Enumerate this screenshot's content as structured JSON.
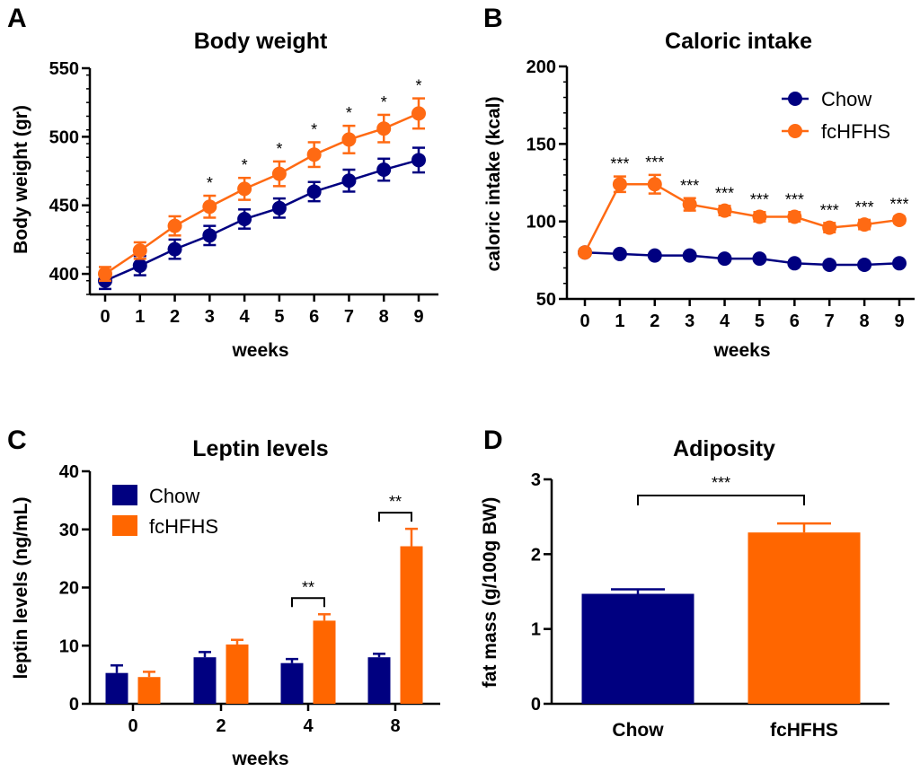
{
  "colors": {
    "chow": "#000080",
    "fchfhs": "#FF6A13",
    "axis": "#000000"
  },
  "chart_data": [
    {
      "panel": "A",
      "type": "line",
      "title": "Body weight",
      "xlabel": "weeks",
      "ylabel": "Body weight (gr)",
      "x": [
        0,
        1,
        2,
        3,
        4,
        5,
        6,
        7,
        8,
        9
      ],
      "ylim": [
        385,
        550
      ],
      "yticks": [
        400,
        450,
        500,
        550
      ],
      "series": [
        {
          "key": "chow",
          "values": [
            395,
            406,
            418,
            428,
            440,
            448,
            460,
            468,
            476,
            483
          ],
          "error": [
            6,
            7,
            7,
            7,
            7,
            7,
            7,
            8,
            8,
            9
          ]
        },
        {
          "key": "fchfhs",
          "values": [
            400,
            417,
            435,
            449,
            462,
            473,
            487,
            498,
            506,
            517
          ],
          "error": [
            5,
            6,
            7,
            8,
            8,
            9,
            9,
            10,
            10,
            11
          ]
        }
      ],
      "annotations": {
        "marker": "*",
        "x": [
          3,
          4,
          5,
          6,
          7,
          8,
          9
        ]
      }
    },
    {
      "panel": "B",
      "type": "line",
      "title": "Caloric intake",
      "xlabel": "weeks",
      "ylabel": "caloric intake (kcal)",
      "x": [
        0,
        1,
        2,
        3,
        4,
        5,
        6,
        7,
        8,
        9
      ],
      "ylim": [
        50,
        200
      ],
      "yticks": [
        50,
        100,
        150,
        200
      ],
      "legend": {
        "position": "top-right",
        "entries": [
          "Chow",
          "fcHFHS"
        ]
      },
      "series": [
        {
          "name": "Chow",
          "key": "chow",
          "values": [
            80,
            79,
            78,
            78,
            76,
            76,
            73,
            72,
            72,
            73
          ],
          "error": [
            2,
            1,
            1,
            1,
            1,
            1,
            1,
            1,
            1,
            1
          ]
        },
        {
          "name": "fcHFHS",
          "key": "fchfhs",
          "values": [
            80,
            124,
            124,
            111,
            107,
            103,
            103,
            96,
            98,
            101
          ],
          "error": [
            2,
            5,
            6,
            4,
            3,
            3,
            3,
            3,
            3,
            2
          ]
        }
      ],
      "annotations": {
        "marker": "***",
        "x": [
          1,
          2,
          3,
          4,
          5,
          6,
          7,
          8,
          9
        ]
      }
    },
    {
      "panel": "C",
      "type": "bar",
      "title": "Leptin levels",
      "xlabel": "weeks",
      "ylabel": "leptin levels (ng/mL)",
      "categories": [
        "0",
        "2",
        "4",
        "8"
      ],
      "ylim": [
        0,
        40
      ],
      "yticks": [
        0,
        10,
        20,
        30,
        40
      ],
      "legend": {
        "position": "top-left",
        "entries": [
          "Chow",
          "fcHFHS"
        ]
      },
      "series": [
        {
          "name": "Chow",
          "key": "chow",
          "values": [
            5.3,
            8.0,
            7.0,
            8.0
          ],
          "error": [
            1.3,
            0.9,
            0.7,
            0.6
          ]
        },
        {
          "name": "fcHFHS",
          "key": "fchfhs",
          "values": [
            4.6,
            10.2,
            14.3,
            27.1
          ],
          "error": [
            0.9,
            0.8,
            1.1,
            3.0
          ]
        }
      ],
      "annotations": [
        {
          "category": "4",
          "marker": "**"
        },
        {
          "category": "8",
          "marker": "**"
        }
      ]
    },
    {
      "panel": "D",
      "type": "bar",
      "title": "Adiposity",
      "xlabel": "",
      "ylabel": "fat mass (g/100g BW)",
      "categories": [
        "Chow",
        "fcHFHS"
      ],
      "ylim": [
        0,
        3
      ],
      "yticks": [
        0,
        1,
        2,
        3
      ],
      "values": [
        1.47,
        2.29
      ],
      "error": [
        0.06,
        0.12
      ],
      "annotations": [
        {
          "between": [
            "Chow",
            "fcHFHS"
          ],
          "marker": "***"
        }
      ]
    }
  ]
}
